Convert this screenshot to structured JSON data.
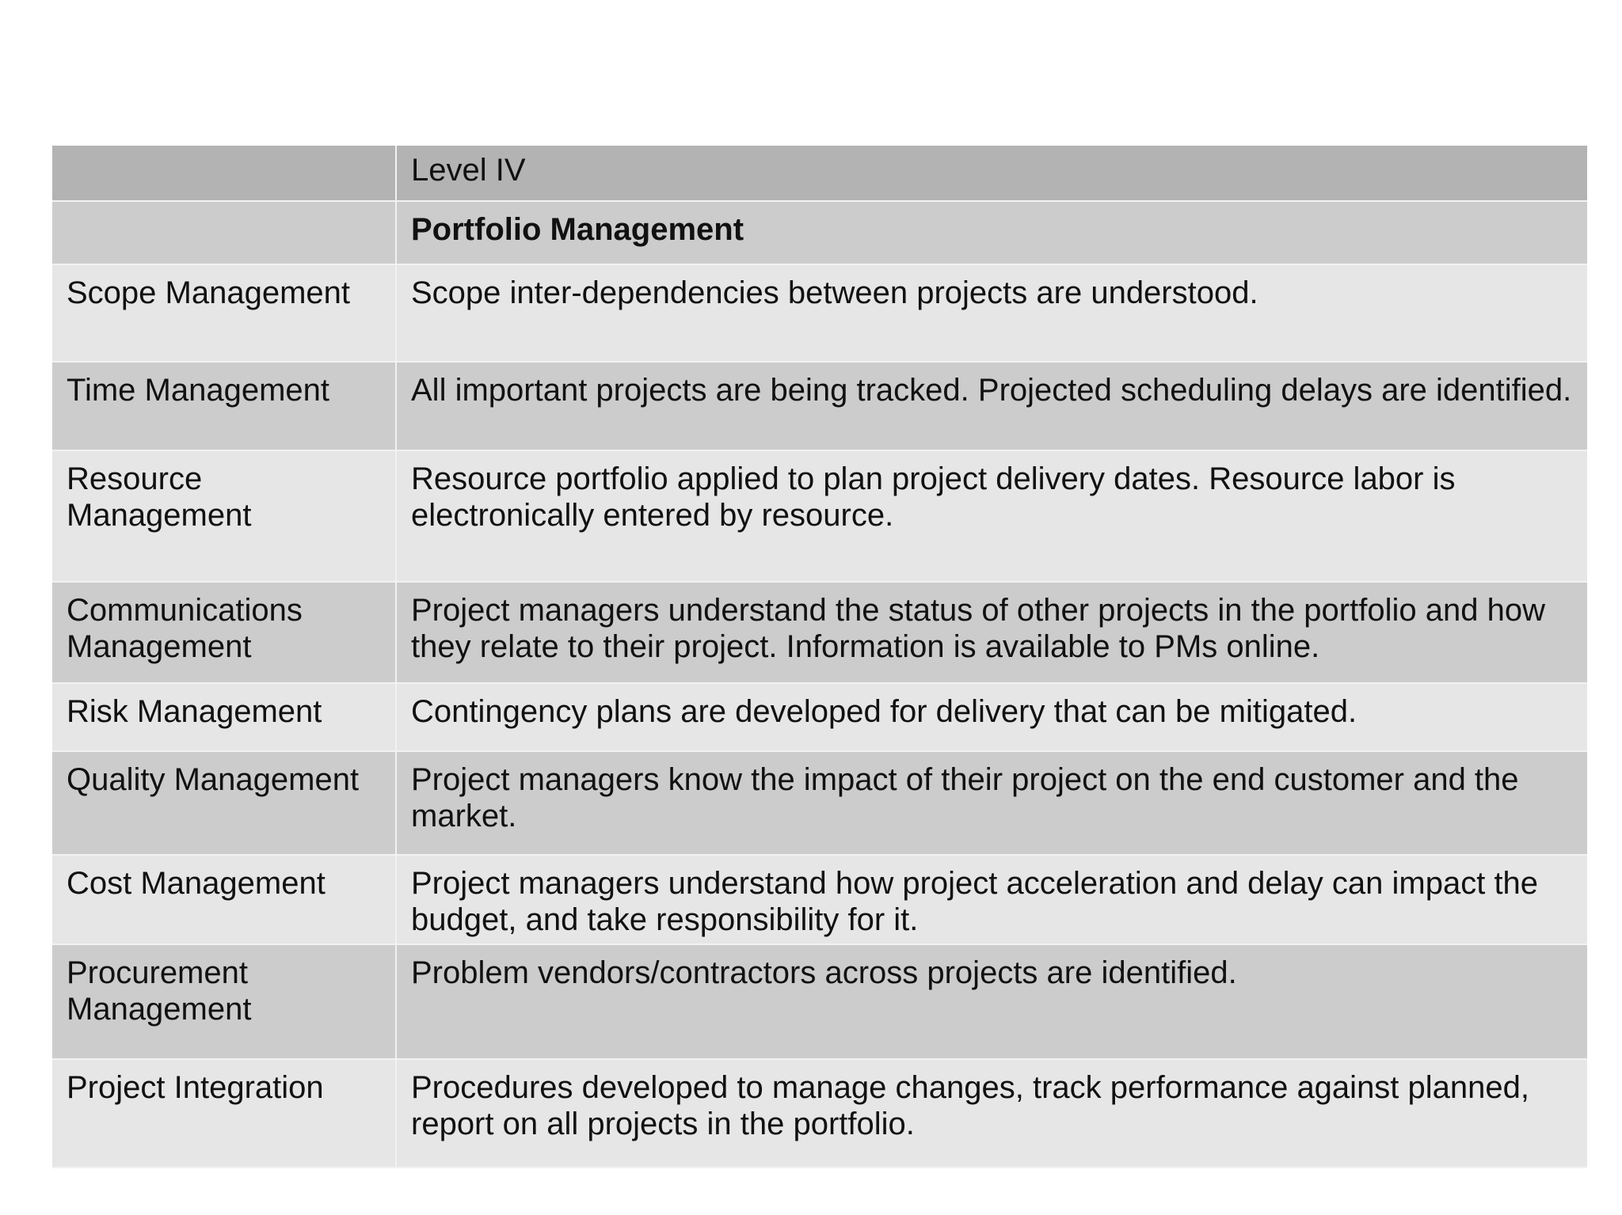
{
  "table": {
    "header": {
      "corner": "",
      "level": "Level IV"
    },
    "subheader": {
      "corner": "",
      "title": "Portfolio Management"
    },
    "rows": [
      {
        "area": "Scope Management",
        "description": "Scope inter-dependencies between projects are understood."
      },
      {
        "area": "Time Management",
        "description": "All important projects are being tracked. Projected scheduling delays are identified."
      },
      {
        "area": "Resource Management",
        "description": "Resource portfolio applied to plan project delivery dates. Resource labor is electronically entered by resource."
      },
      {
        "area": "Communications Management",
        "description": "Project managers understand the status of other projects in the portfolio and how they relate to their project. Information is available to PMs online."
      },
      {
        "area": "Risk Management",
        "description": "Contingency plans are developed for delivery that can be mitigated."
      },
      {
        "area": "Quality Management",
        "description": "Project managers know the impact of their project on the end customer and the market."
      },
      {
        "area": "Cost Management",
        "description": "Project managers understand how project acceleration and delay can impact the budget, and take responsibility for it."
      },
      {
        "area": "Procurement Management",
        "description": "Problem vendors/contractors across projects are identified."
      },
      {
        "area": "Project Integration",
        "description": "Procedures developed to manage changes, track performance against planned, report on all projects in the portfolio."
      }
    ]
  },
  "colors": {
    "header_bg": "#b3b3b3",
    "dark_row_bg": "#cccccc",
    "light_row_bg": "#e6e6e6"
  }
}
